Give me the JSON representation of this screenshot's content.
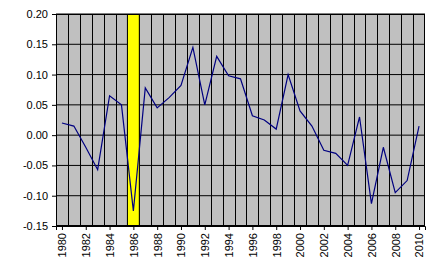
{
  "chart_data": {
    "type": "line",
    "x": [
      1980,
      1981,
      1982,
      1983,
      1984,
      1985,
      1986,
      1987,
      1988,
      1989,
      1990,
      1991,
      1992,
      1993,
      1994,
      1995,
      1996,
      1997,
      1998,
      1999,
      2000,
      2001,
      2002,
      2003,
      2004,
      2005,
      2006,
      2007,
      2008,
      2009,
      2010
    ],
    "values": [
      0.02,
      0.015,
      -0.02,
      -0.057,
      0.065,
      0.05,
      -0.125,
      0.078,
      0.045,
      0.062,
      0.082,
      0.145,
      0.05,
      0.13,
      0.098,
      0.093,
      0.032,
      0.025,
      0.01,
      0.1,
      0.04,
      0.015,
      -0.025,
      -0.03,
      -0.05,
      0.03,
      -0.113,
      -0.02,
      -0.095,
      -0.075,
      0.015
    ],
    "color": "#000080",
    "xlim": [
      1979.5,
      2010.5
    ],
    "xticks": [
      1980,
      1982,
      1984,
      1986,
      1988,
      1990,
      1992,
      1994,
      1996,
      1998,
      2000,
      2002,
      2004,
      2006,
      2008,
      2010
    ],
    "ylim": [
      -0.15,
      0.2
    ],
    "yticks": [
      {
        "value": -0.15,
        "label": "-0.15"
      },
      {
        "value": -0.1,
        "label": "-0.10"
      },
      {
        "value": -0.05,
        "label": "-0.05"
      },
      {
        "value": 0,
        "label": "0.00"
      },
      {
        "value": 0.05,
        "label": "0.05"
      },
      {
        "value": 0.1,
        "label": "0.10"
      },
      {
        "value": 0.15,
        "label": "0.15"
      },
      {
        "value": 0.2,
        "label": "0.20"
      }
    ],
    "highlight_x": [
      1985.5,
      1986.5
    ],
    "grid": true
  }
}
